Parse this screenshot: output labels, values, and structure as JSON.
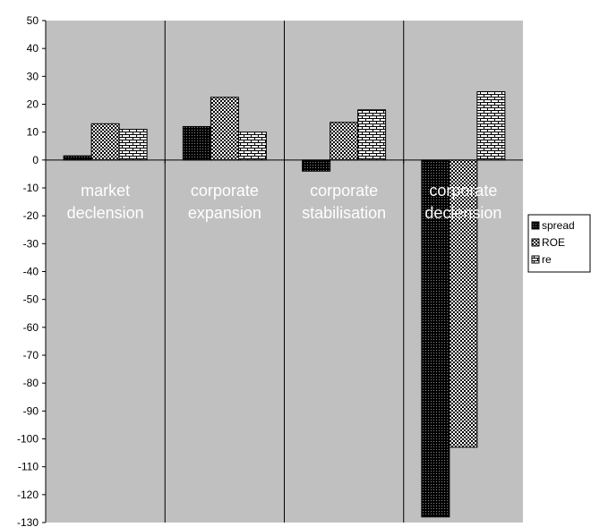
{
  "chart_data": {
    "type": "bar",
    "title": "",
    "xlabel": "",
    "ylabel": "",
    "ylim": [
      -130,
      50
    ],
    "ytick_step": 10,
    "yticks": [
      "50",
      "40",
      "30",
      "20",
      "10",
      "0",
      "-10",
      "-20",
      "-30",
      "-40",
      "-50",
      "-60",
      "-70",
      "-80",
      "-90",
      "-100",
      "-110",
      "-120",
      "-130"
    ],
    "categories": [
      [
        "market",
        "declension"
      ],
      [
        "corporate",
        "expansion"
      ],
      [
        "corporate",
        "stabilisation"
      ],
      [
        "corporate",
        "declension"
      ]
    ],
    "series": [
      {
        "name": "spread",
        "values": [
          1.5,
          12,
          -4,
          -128
        ],
        "pattern": "dots"
      },
      {
        "name": "ROE",
        "values": [
          13,
          22.5,
          13.5,
          -103
        ],
        "pattern": "checker"
      },
      {
        "name": "re",
        "values": [
          11,
          10,
          18,
          24.5
        ],
        "pattern": "brick"
      }
    ],
    "grid": false,
    "legend": "right",
    "colors": {
      "plot_background": "#c0c0c0",
      "category_text": "#ffffff",
      "axis": "#000000"
    }
  }
}
